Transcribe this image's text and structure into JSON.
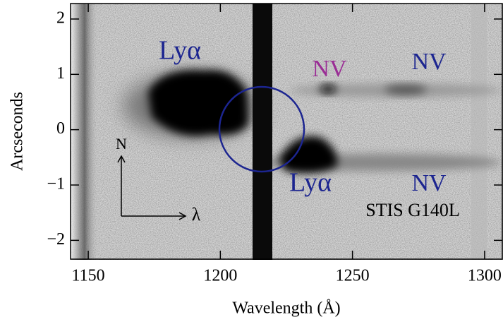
{
  "chart_data": {
    "type": "image",
    "xlabel": "Wavelength (Å)",
    "ylabel": "Arcseconds",
    "xlim": [
      1143.3,
      1306.7
    ],
    "ylim": [
      -2.34,
      2.28
    ],
    "xticks": [
      1150,
      1200,
      1250,
      1300
    ],
    "yticks": [
      {
        "value": -2,
        "label": "−2"
      },
      {
        "value": -1,
        "label": "−1"
      },
      0,
      1,
      2
    ],
    "annotations": [
      {
        "text": "Lyα",
        "color": "#1c2590"
      },
      {
        "text": "NV",
        "color": "#9a2d95"
      },
      {
        "text": "NV",
        "color": "#1c2590"
      },
      {
        "text": "Lyα",
        "color": "#1c2590"
      },
      {
        "text": "NV",
        "color": "#1c2590"
      },
      {
        "text": "STIS G140L",
        "color": "#000000"
      },
      {
        "text": "N",
        "color": "#000000"
      },
      {
        "text": "λ",
        "color": "#000000"
      }
    ]
  }
}
